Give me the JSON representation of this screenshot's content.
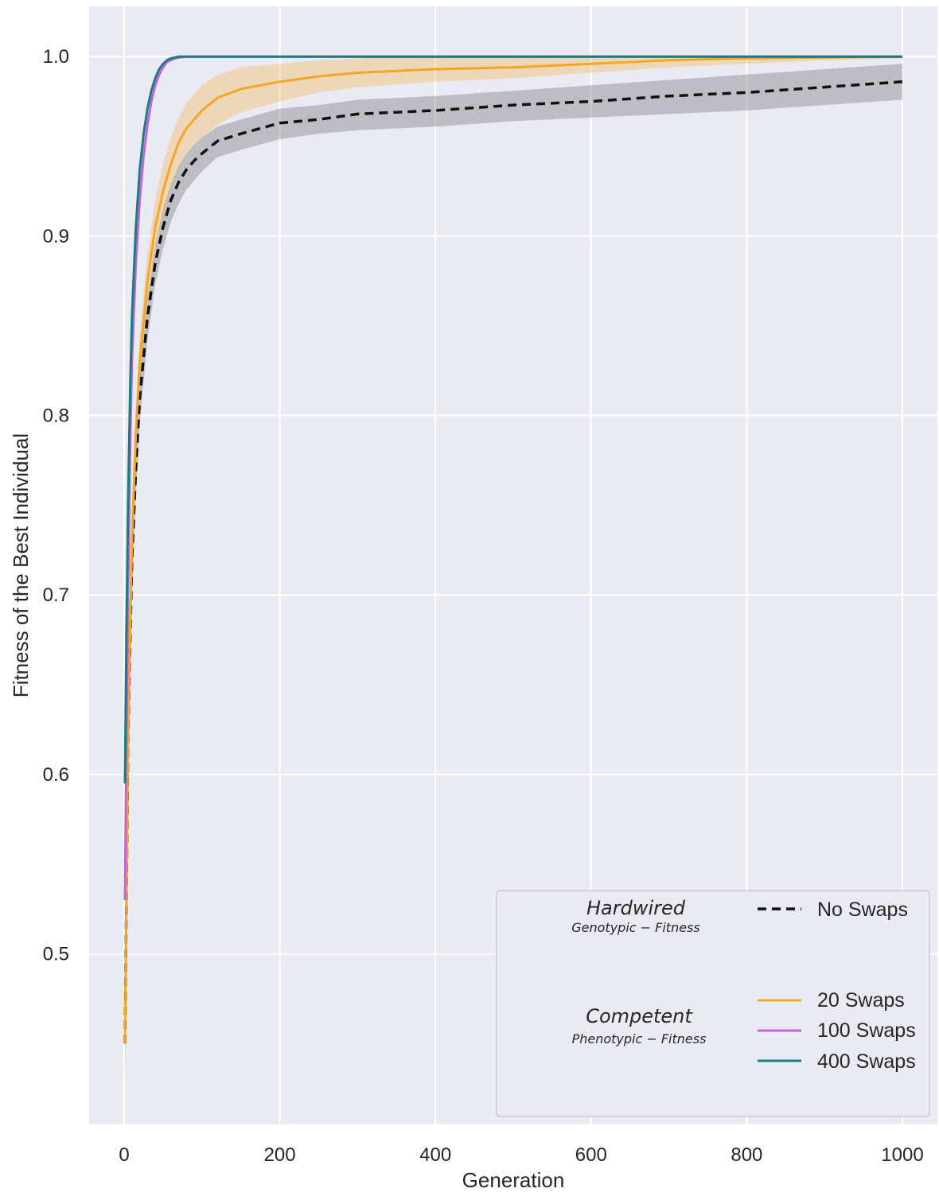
{
  "chart_data": {
    "type": "line",
    "xlabel": "Generation",
    "ylabel": "Fitness of the Best Individual",
    "xlim": [
      -45,
      1045
    ],
    "ylim": [
      0.405,
      1.028
    ],
    "xticks": [
      0,
      200,
      400,
      600,
      800,
      1000
    ],
    "yticks": [
      0.5,
      0.6,
      0.7,
      0.8,
      0.9,
      1.0
    ],
    "xtick_labels": [
      "0",
      "200",
      "400",
      "600",
      "800",
      "1000"
    ],
    "ytick_labels": [
      "0.5",
      "0.6",
      "0.7",
      "0.8",
      "0.9",
      "1.0"
    ],
    "grid": true,
    "legend_placement": "lower-right",
    "legend_groups": [
      {
        "title": "Hardwired",
        "subtitle": "Genotypic − Fitness",
        "entries": [
          "No Swaps"
        ]
      },
      {
        "title": "Competent",
        "subtitle": "Phenotypic − Fitness",
        "entries": [
          "20 Swaps",
          "100 Swaps",
          "400 Swaps"
        ]
      }
    ],
    "series": [
      {
        "name": "No Swaps",
        "color": "#111111",
        "style": "dashed",
        "x": [
          1,
          5,
          10,
          15,
          20,
          30,
          40,
          50,
          60,
          70,
          80,
          90,
          100,
          120,
          150,
          200,
          250,
          300,
          400,
          500,
          600,
          700,
          800,
          900,
          1000
        ],
        "y": [
          0.45,
          0.62,
          0.72,
          0.77,
          0.81,
          0.855,
          0.885,
          0.905,
          0.92,
          0.93,
          0.937,
          0.942,
          0.946,
          0.953,
          0.957,
          0.963,
          0.965,
          0.968,
          0.97,
          0.973,
          0.975,
          0.978,
          0.98,
          0.983,
          0.986
        ],
        "band_lower": [
          0.43,
          0.6,
          0.7,
          0.755,
          0.795,
          0.842,
          0.873,
          0.893,
          0.908,
          0.918,
          0.926,
          0.931,
          0.936,
          0.944,
          0.948,
          0.954,
          0.957,
          0.959,
          0.961,
          0.964,
          0.966,
          0.968,
          0.97,
          0.973,
          0.976
        ],
        "band_upper": [
          0.47,
          0.64,
          0.74,
          0.785,
          0.822,
          0.866,
          0.895,
          0.915,
          0.929,
          0.939,
          0.946,
          0.951,
          0.955,
          0.961,
          0.965,
          0.971,
          0.973,
          0.976,
          0.978,
          0.981,
          0.984,
          0.987,
          0.99,
          0.993,
          0.996
        ]
      },
      {
        "name": "20 Swaps",
        "color": "#f5a623",
        "style": "solid",
        "x": [
          1,
          5,
          10,
          15,
          20,
          30,
          40,
          50,
          60,
          70,
          80,
          90,
          100,
          120,
          150,
          200,
          250,
          300,
          400,
          500,
          600,
          700,
          800,
          900,
          1000
        ],
        "y": [
          0.45,
          0.62,
          0.73,
          0.79,
          0.83,
          0.875,
          0.905,
          0.925,
          0.94,
          0.952,
          0.96,
          0.965,
          0.97,
          0.977,
          0.982,
          0.986,
          0.989,
          0.991,
          0.993,
          0.994,
          0.996,
          0.998,
          0.999,
          0.9995,
          1.0
        ],
        "band_lower": [
          0.44,
          0.61,
          0.72,
          0.775,
          0.815,
          0.862,
          0.893,
          0.912,
          0.927,
          0.938,
          0.946,
          0.951,
          0.955,
          0.962,
          0.969,
          0.975,
          0.98,
          0.983,
          0.986,
          0.988,
          0.991,
          0.994,
          0.996,
          0.998,
          0.999
        ],
        "band_upper": [
          0.46,
          0.63,
          0.745,
          0.805,
          0.845,
          0.89,
          0.92,
          0.94,
          0.955,
          0.966,
          0.974,
          0.979,
          0.984,
          0.99,
          0.994,
          0.996,
          0.998,
          0.999,
          1.0,
          1.0,
          1.0,
          1.0,
          1.0,
          1.0,
          1.0
        ]
      },
      {
        "name": "100 Swaps",
        "color": "#c263d8",
        "style": "solid",
        "x": [
          1,
          3,
          5,
          8,
          10,
          15,
          20,
          25,
          30,
          35,
          40,
          45,
          50,
          55,
          60,
          65,
          70,
          80,
          90,
          100,
          1000
        ],
        "y": [
          0.53,
          0.62,
          0.7,
          0.79,
          0.83,
          0.885,
          0.92,
          0.945,
          0.962,
          0.975,
          0.984,
          0.99,
          0.994,
          0.997,
          0.998,
          0.999,
          0.9995,
          1.0,
          1.0,
          1.0,
          1.0
        ]
      },
      {
        "name": "400 Swaps",
        "color": "#177f7f",
        "style": "solid",
        "x": [
          1,
          3,
          5,
          8,
          10,
          15,
          20,
          25,
          30,
          35,
          40,
          45,
          50,
          55,
          60,
          65,
          70,
          80,
          90,
          100,
          1000
        ],
        "y": [
          0.595,
          0.68,
          0.75,
          0.82,
          0.855,
          0.905,
          0.937,
          0.957,
          0.971,
          0.981,
          0.988,
          0.993,
          0.996,
          0.998,
          0.999,
          0.9995,
          1.0,
          1.0,
          1.0,
          1.0,
          1.0
        ]
      }
    ]
  }
}
